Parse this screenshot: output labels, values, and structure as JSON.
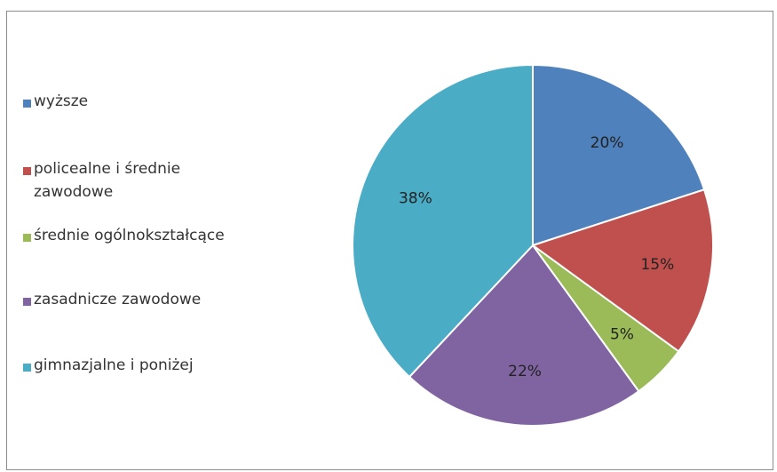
{
  "chart_data": {
    "type": "pie",
    "categories": [
      "wyższe",
      "policealne i średnie zawodowe",
      "średnie ogólnokształcące",
      "zasadnicze zawodowe",
      "gimnazjalne i poniżej"
    ],
    "values": [
      20,
      15,
      5,
      22,
      38
    ],
    "data_labels": [
      "20%",
      "15%",
      "5%",
      "22%",
      "38%"
    ],
    "colors": [
      "#4f81bd",
      "#c0504d",
      "#9bbb59",
      "#8064a2",
      "#4bacc6"
    ],
    "legend_position": "left"
  }
}
